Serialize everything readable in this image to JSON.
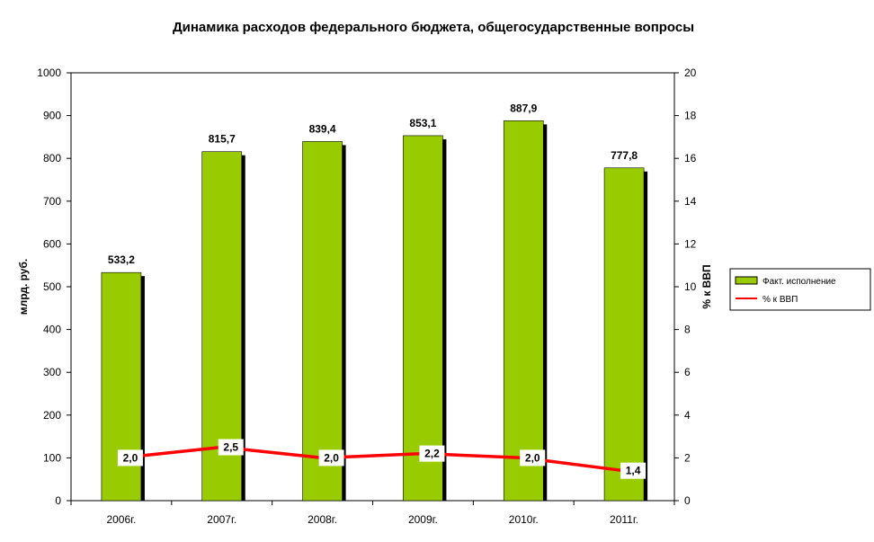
{
  "chart_data": {
    "type": "bar",
    "title": "Динамика расходов федерального бюджета, общегосударственные вопросы",
    "categories": [
      "2006г.",
      "2007г.",
      "2008г.",
      "2009г.",
      "2010г.",
      "2011г."
    ],
    "series": [
      {
        "name": "Факт. исполнение",
        "type": "bar",
        "axis": "left",
        "values": [
          533.2,
          815.7,
          839.4,
          853.1,
          887.9,
          777.8
        ],
        "labels": [
          "533,2",
          "815,7",
          "839,4",
          "853,1",
          "887,9",
          "777,8"
        ],
        "color": "#99CC00"
      },
      {
        "name": "% к ВВП",
        "type": "line",
        "axis": "right",
        "values": [
          2.0,
          2.5,
          2.0,
          2.2,
          2.0,
          1.4
        ],
        "labels": [
          "2,0",
          "2,5",
          "2,0",
          "2,2",
          "2,0",
          "1,4"
        ],
        "color": "#FF0000"
      }
    ],
    "ylabel": "млрд. руб.",
    "ylim": [
      0,
      1000
    ],
    "yticks": [
      "0",
      "100",
      "200",
      "300",
      "400",
      "500",
      "600",
      "700",
      "800",
      "900",
      "1000"
    ],
    "y2label": "% к ВВП",
    "y2lim": [
      0,
      20
    ],
    "y2ticks": [
      "0",
      "2",
      "4",
      "6",
      "8",
      "10",
      "12",
      "14",
      "16",
      "18",
      "20"
    ],
    "grid": false,
    "legend_position": "right"
  }
}
